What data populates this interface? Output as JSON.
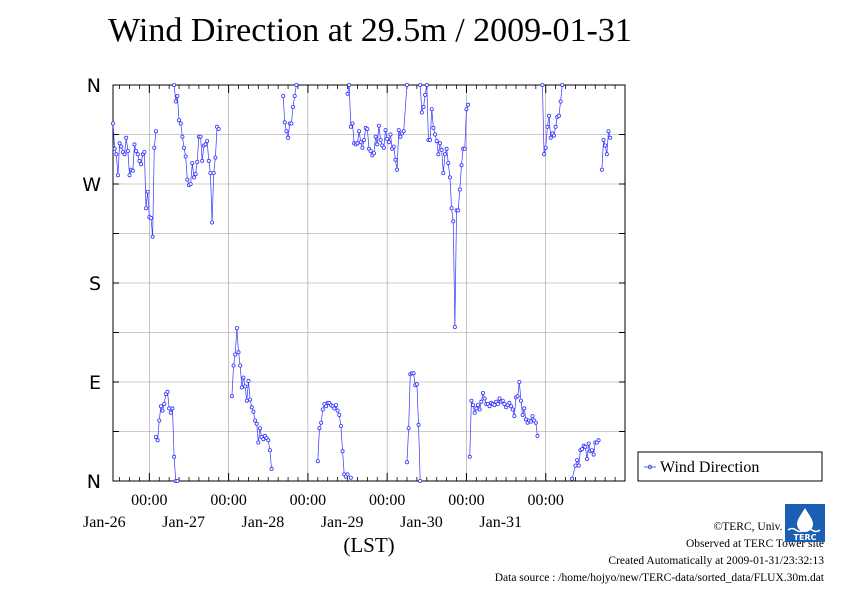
{
  "chart_data": {
    "type": "scatter",
    "title": "Wind Direction at 29.5m / 2009-01-31",
    "xlabel": "(LST)",
    "ylabel": "",
    "x_unit": "hours since 2009-01-25 00:00 LST",
    "xlim": [
      13,
      168
    ],
    "ylim": [
      0,
      360
    ],
    "y_ticks": [
      {
        "value": 0,
        "label": "N"
      },
      {
        "value": 90,
        "label": "E"
      },
      {
        "value": 180,
        "label": "S"
      },
      {
        "value": 270,
        "label": "W"
      },
      {
        "value": 360,
        "label": "N"
      }
    ],
    "x_ticks": [
      {
        "value": 24,
        "time": "00:00",
        "date": "Jan-26"
      },
      {
        "value": 48,
        "time": "00:00",
        "date": "Jan-27"
      },
      {
        "value": 72,
        "time": "00:00",
        "date": "Jan-28"
      },
      {
        "value": 96,
        "time": "00:00",
        "date": "Jan-29"
      },
      {
        "value": 120,
        "time": "00:00",
        "date": "Jan-30"
      },
      {
        "value": 144,
        "time": "00:00",
        "date": "Jan-31"
      }
    ],
    "grid": true,
    "legend": "right",
    "series": [
      {
        "name": "Wind Direction",
        "color": "#3333ff",
        "points": [
          [
            13,
            325
          ],
          [
            13.5,
            302
          ],
          [
            14,
            297
          ],
          [
            14.5,
            278
          ],
          [
            15,
            307
          ],
          [
            15.5,
            304
          ],
          [
            16,
            299
          ],
          [
            16.5,
            297
          ],
          [
            17,
            312
          ],
          [
            17.5,
            300
          ],
          [
            18,
            278
          ],
          [
            18.5,
            283
          ],
          [
            19,
            282
          ],
          [
            19.5,
            306
          ],
          [
            20,
            300
          ],
          [
            20.5,
            297
          ],
          [
            21,
            291
          ],
          [
            21.5,
            288
          ],
          [
            22,
            297
          ],
          [
            22.5,
            299
          ],
          [
            23,
            248
          ],
          [
            23.5,
            263
          ],
          [
            24,
            240
          ],
          [
            24.5,
            239
          ],
          [
            25,
            222
          ],
          [
            25.5,
            303
          ],
          [
            26,
            318
          ],
          [
            26,
            40
          ],
          [
            26.5,
            37
          ],
          [
            27,
            55
          ],
          [
            27.5,
            68
          ],
          [
            28,
            64
          ],
          [
            28.5,
            70
          ],
          [
            29,
            79
          ],
          [
            29.5,
            81
          ],
          [
            30,
            66
          ],
          [
            30.5,
            62
          ],
          [
            31,
            66
          ],
          [
            31.5,
            22
          ],
          [
            32,
            0
          ],
          [
            32.5,
            0
          ],
          [
            31.5,
            360
          ],
          [
            32,
            345
          ],
          [
            32.5,
            350
          ],
          [
            33,
            328
          ],
          [
            33.5,
            325
          ],
          [
            34,
            313
          ],
          [
            34.5,
            303
          ],
          [
            35,
            295
          ],
          [
            35.5,
            274
          ],
          [
            36,
            269
          ],
          [
            36.5,
            270
          ],
          [
            37,
            289
          ],
          [
            37.5,
            276
          ],
          [
            38,
            279
          ],
          [
            38.5,
            290
          ],
          [
            39,
            313
          ],
          [
            39.5,
            313
          ],
          [
            40,
            291
          ],
          [
            40.5,
            305
          ],
          [
            41,
            306
          ],
          [
            41.5,
            309
          ],
          [
            42,
            291
          ],
          [
            42.5,
            280
          ],
          [
            43,
            235
          ],
          [
            43.5,
            280
          ],
          [
            44,
            294
          ],
          [
            44.5,
            322
          ],
          [
            45,
            320
          ],
          [
            49,
            77
          ],
          [
            49.5,
            105
          ],
          [
            50,
            115
          ],
          [
            50.5,
            139
          ],
          [
            51,
            117
          ],
          [
            51.5,
            105
          ],
          [
            52,
            85
          ],
          [
            52.5,
            94
          ],
          [
            53,
            86
          ],
          [
            53.5,
            73
          ],
          [
            54,
            91
          ],
          [
            54.5,
            74
          ],
          [
            55,
            67
          ],
          [
            55.5,
            63
          ],
          [
            56,
            55
          ],
          [
            56.5,
            52
          ],
          [
            57,
            35
          ],
          [
            57.5,
            48
          ],
          [
            58,
            40
          ],
          [
            58.5,
            38
          ],
          [
            59,
            41
          ],
          [
            59.5,
            39
          ],
          [
            60,
            37
          ],
          [
            60.5,
            28
          ],
          [
            61,
            11
          ],
          [
            64.5,
            350
          ],
          [
            65,
            326
          ],
          [
            65.5,
            318
          ],
          [
            66,
            312
          ],
          [
            66.5,
            325
          ],
          [
            67,
            325
          ],
          [
            67.5,
            340
          ],
          [
            68,
            350
          ],
          [
            68.5,
            360
          ],
          [
            75,
            18
          ],
          [
            75.5,
            48
          ],
          [
            76,
            53
          ],
          [
            76.5,
            65
          ],
          [
            77,
            70
          ],
          [
            77.5,
            68
          ],
          [
            78,
            71
          ],
          [
            78.5,
            71
          ],
          [
            79,
            69
          ],
          [
            79.5,
            68
          ],
          [
            80,
            66
          ],
          [
            80.5,
            69
          ],
          [
            81,
            64
          ],
          [
            81.5,
            60
          ],
          [
            82,
            50
          ],
          [
            82.5,
            27
          ],
          [
            83,
            6
          ],
          [
            83.5,
            4
          ],
          [
            84,
            6
          ],
          [
            85,
            3
          ],
          [
            84,
            352
          ],
          [
            84.5,
            360
          ],
          [
            85,
            322
          ],
          [
            85.5,
            325
          ],
          [
            86,
            307
          ],
          [
            86.5,
            306
          ],
          [
            87,
            307
          ],
          [
            87.5,
            318
          ],
          [
            88,
            308
          ],
          [
            88.5,
            303
          ],
          [
            89,
            310
          ],
          [
            89.5,
            321
          ],
          [
            90,
            320
          ],
          [
            90.5,
            302
          ],
          [
            91,
            300
          ],
          [
            91.5,
            296
          ],
          [
            92,
            298
          ],
          [
            92.5,
            313
          ],
          [
            93,
            306
          ],
          [
            93.5,
            323
          ],
          [
            94,
            310
          ],
          [
            94.5,
            305
          ],
          [
            95,
            303
          ],
          [
            95.5,
            319
          ],
          [
            96,
            311
          ],
          [
            96.5,
            308
          ],
          [
            97,
            315
          ],
          [
            97.5,
            302
          ],
          [
            98,
            304
          ],
          [
            98.5,
            292
          ],
          [
            99,
            283
          ],
          [
            99.5,
            319
          ],
          [
            100,
            313
          ],
          [
            100.5,
            316
          ],
          [
            101,
            318
          ],
          [
            102,
            360
          ],
          [
            102,
            17
          ],
          [
            102.5,
            48
          ],
          [
            103,
            97
          ],
          [
            103.5,
            98
          ],
          [
            104,
            98
          ],
          [
            104.5,
            87
          ],
          [
            105,
            88
          ],
          [
            105.5,
            51
          ],
          [
            106,
            0
          ],
          [
            106,
            360
          ],
          [
            106.5,
            335
          ],
          [
            107,
            340
          ],
          [
            107.5,
            351
          ],
          [
            108,
            360
          ],
          [
            108.5,
            310
          ],
          [
            109,
            310
          ],
          [
            109.5,
            338
          ],
          [
            110,
            321
          ],
          [
            110.5,
            315
          ],
          [
            111,
            309
          ],
          [
            111.5,
            297
          ],
          [
            112,
            307
          ],
          [
            112.5,
            301
          ],
          [
            113,
            280
          ],
          [
            113.5,
            297
          ],
          [
            114,
            302
          ],
          [
            114.5,
            289
          ],
          [
            115,
            276
          ],
          [
            115.5,
            248
          ],
          [
            116,
            236
          ],
          [
            116.5,
            140
          ],
          [
            117,
            246
          ],
          [
            117.5,
            246
          ],
          [
            118,
            265
          ],
          [
            118.5,
            287
          ],
          [
            119,
            302
          ],
          [
            119.5,
            302
          ],
          [
            120,
            338
          ],
          [
            120.5,
            342
          ],
          [
            121,
            22
          ],
          [
            121.5,
            73
          ],
          [
            122,
            69
          ],
          [
            122.5,
            62
          ],
          [
            123,
            66
          ],
          [
            123.5,
            69
          ],
          [
            124,
            65
          ],
          [
            124.5,
            72
          ],
          [
            125,
            80
          ],
          [
            125.5,
            75
          ],
          [
            126,
            70
          ],
          [
            126.5,
            70
          ],
          [
            127,
            68
          ],
          [
            127.5,
            71
          ],
          [
            128,
            70
          ],
          [
            128.5,
            69
          ],
          [
            129,
            72
          ],
          [
            129.5,
            70
          ],
          [
            130,
            75
          ],
          [
            130.5,
            72
          ],
          [
            131,
            73
          ],
          [
            131.5,
            70
          ],
          [
            132,
            67
          ],
          [
            132.5,
            69
          ],
          [
            133,
            71
          ],
          [
            133.5,
            68
          ],
          [
            134,
            65
          ],
          [
            134.5,
            59
          ],
          [
            135,
            76
          ],
          [
            135.5,
            77
          ],
          [
            136,
            90
          ],
          [
            136.5,
            73
          ],
          [
            137,
            60
          ],
          [
            137.5,
            66
          ],
          [
            138,
            56
          ],
          [
            138.5,
            53
          ],
          [
            139,
            55
          ],
          [
            139.5,
            54
          ],
          [
            140,
            59
          ],
          [
            140.5,
            55
          ],
          [
            141,
            53
          ],
          [
            141.5,
            41
          ],
          [
            143,
            360
          ],
          [
            143.5,
            297
          ],
          [
            144,
            303
          ],
          [
            144.5,
            322
          ],
          [
            145,
            332
          ],
          [
            145.5,
            312
          ],
          [
            146,
            316
          ],
          [
            146.5,
            314
          ],
          [
            147,
            322
          ],
          [
            147.5,
            331
          ],
          [
            148,
            332
          ],
          [
            148.5,
            345
          ],
          [
            149,
            360
          ],
          [
            152,
            2
          ],
          [
            153,
            14
          ],
          [
            153.5,
            19
          ],
          [
            154,
            14
          ],
          [
            154.5,
            28
          ],
          [
            155,
            29
          ],
          [
            155.5,
            32
          ],
          [
            156,
            31
          ],
          [
            156.5,
            20
          ],
          [
            157,
            34
          ],
          [
            157.5,
            27
          ],
          [
            158,
            28
          ],
          [
            158.5,
            24
          ],
          [
            159,
            35
          ],
          [
            159.5,
            35
          ],
          [
            160,
            37
          ],
          [
            161,
            283
          ],
          [
            161.5,
            310
          ],
          [
            162,
            305
          ],
          [
            162.5,
            297
          ],
          [
            163,
            318
          ],
          [
            163.5,
            312
          ]
        ]
      }
    ]
  },
  "credits": {
    "copyright": "©TERC, Univ. Tsukuba",
    "observed": "Observed at TERC Tower site",
    "created": "Created Automatically at 2009-01-31/23:32:13",
    "source": "Data source : /home/hojyo/new/TERC-data/sorted_data/FLUX.30m.dat"
  },
  "logo": {
    "text": "TERC",
    "color": "#1a5fb4"
  }
}
